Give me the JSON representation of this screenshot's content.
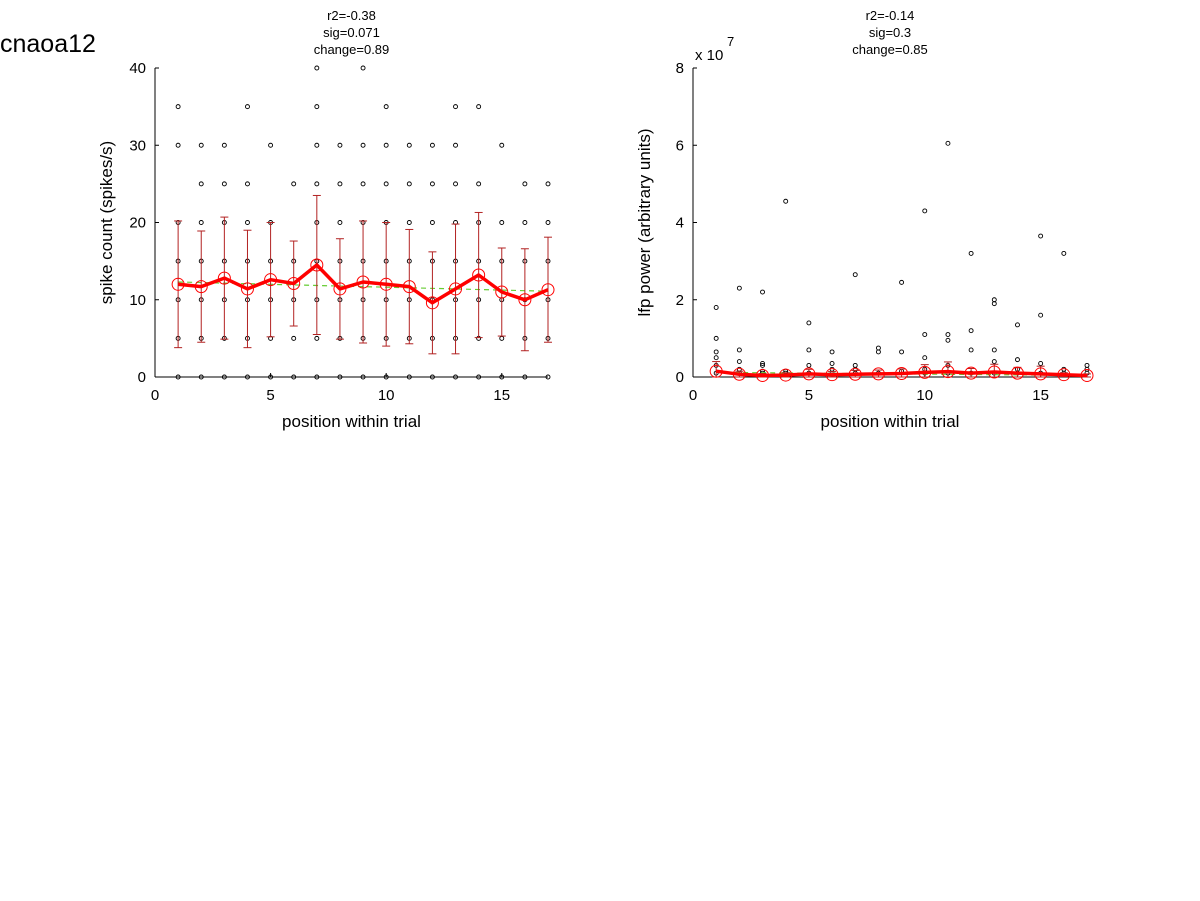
{
  "page_title": "cnaoa12",
  "colors": {
    "mean_line": "#ff0000",
    "errorbar": "#b22222",
    "fit_line": "#66cc33",
    "points": "#000000"
  },
  "chart_data": [
    {
      "type": "scatter",
      "stats": [
        "r2=-0.38",
        "sig=0.071",
        "change=0.89"
      ],
      "xlabel": "position within trial",
      "ylabel": "spike count (spikes/s)",
      "xlim": [
        0,
        17
      ],
      "ylim": [
        0,
        40
      ],
      "xticks": [
        0,
        5,
        10,
        15
      ],
      "yticks": [
        0,
        10,
        20,
        30,
        40
      ],
      "exponent_label": "",
      "grid": false,
      "points_x": [
        1,
        1,
        1,
        1,
        1,
        1,
        1,
        2,
        2,
        2,
        2,
        2,
        2,
        2,
        3,
        3,
        3,
        3,
        3,
        3,
        3,
        4,
        4,
        4,
        4,
        4,
        4,
        4,
        5,
        5,
        5,
        5,
        5,
        5,
        6,
        6,
        6,
        6,
        6,
        7,
        7,
        7,
        7,
        7,
        7,
        7,
        7,
        7,
        8,
        8,
        8,
        8,
        8,
        8,
        8,
        9,
        9,
        9,
        9,
        9,
        9,
        9,
        9,
        10,
        10,
        10,
        10,
        10,
        10,
        10,
        10,
        11,
        11,
        11,
        11,
        11,
        11,
        11,
        12,
        12,
        12,
        12,
        12,
        12,
        12,
        13,
        13,
        13,
        13,
        13,
        13,
        13,
        13,
        14,
        14,
        14,
        14,
        14,
        14,
        14,
        15,
        15,
        15,
        15,
        15,
        15,
        16,
        16,
        16,
        16,
        16,
        16,
        17,
        17,
        17,
        17,
        17,
        17
      ],
      "points_y": [
        0,
        5,
        10,
        15,
        20,
        30,
        35,
        0,
        5,
        10,
        15,
        20,
        25,
        30,
        0,
        5,
        10,
        15,
        20,
        25,
        30,
        0,
        5,
        10,
        15,
        20,
        25,
        35,
        0,
        5,
        10,
        15,
        20,
        30,
        0,
        5,
        10,
        15,
        25,
        0,
        5,
        10,
        15,
        20,
        25,
        30,
        35,
        40,
        0,
        5,
        10,
        15,
        20,
        25,
        30,
        0,
        5,
        10,
        15,
        20,
        25,
        30,
        40,
        0,
        5,
        10,
        15,
        20,
        25,
        30,
        35,
        0,
        5,
        10,
        15,
        20,
        25,
        30,
        0,
        5,
        10,
        15,
        20,
        25,
        30,
        0,
        5,
        10,
        15,
        20,
        25,
        30,
        35,
        0,
        5,
        10,
        15,
        20,
        25,
        35,
        0,
        5,
        10,
        15,
        20,
        30,
        0,
        5,
        10,
        15,
        20,
        25,
        0,
        5,
        10,
        15,
        20,
        25
      ],
      "mean_x": [
        1,
        2,
        3,
        4,
        5,
        6,
        7,
        8,
        9,
        10,
        11,
        12,
        13,
        14,
        15,
        16,
        17
      ],
      "mean_y": [
        12.0,
        11.7,
        12.8,
        11.4,
        12.6,
        12.1,
        14.5,
        11.4,
        12.3,
        12.0,
        11.7,
        9.6,
        11.4,
        13.2,
        11.0,
        10.0,
        11.3
      ],
      "err": [
        8.2,
        7.2,
        7.9,
        7.6,
        7.4,
        5.5,
        9.0,
        6.5,
        7.9,
        8.0,
        7.4,
        6.6,
        8.4,
        8.1,
        5.7,
        6.6,
        6.8
      ],
      "fit": [
        [
          1,
          12.3
        ],
        [
          17,
          11.1
        ]
      ]
    },
    {
      "type": "scatter",
      "stats": [
        "r2=-0.14",
        "sig=0.3",
        "change=0.85"
      ],
      "xlabel": "position within trial",
      "ylabel": "lfp power (arbitrary units)",
      "xlim": [
        0,
        17
      ],
      "ylim": [
        0,
        8
      ],
      "xticks": [
        0,
        5,
        10,
        15
      ],
      "yticks": [
        0,
        2,
        4,
        6,
        8
      ],
      "exponent_label": "x 10",
      "exponent_power": "7",
      "grid": false,
      "points_x": [
        1,
        1,
        1,
        1,
        1,
        1,
        2,
        2,
        2,
        2,
        2,
        3,
        3,
        3,
        3,
        3,
        4,
        4,
        4,
        5,
        5,
        5,
        5,
        6,
        6,
        6,
        6,
        7,
        7,
        7,
        7,
        8,
        8,
        8,
        9,
        9,
        9,
        10,
        10,
        10,
        10,
        10,
        11,
        11,
        11,
        11,
        11,
        12,
        12,
        12,
        12,
        13,
        13,
        13,
        13,
        13,
        14,
        14,
        14,
        14,
        15,
        15,
        15,
        15,
        16,
        16,
        16,
        17,
        17,
        17
      ],
      "points_y": [
        0.1,
        0.3,
        0.65,
        1.0,
        1.8,
        0.5,
        0.1,
        0.4,
        0.7,
        2.3,
        0.2,
        0.1,
        0.3,
        0.35,
        2.2,
        0.15,
        0.1,
        4.55,
        0.15,
        0.1,
        0.3,
        0.7,
        1.4,
        0.1,
        0.2,
        0.35,
        0.65,
        0.1,
        0.2,
        0.3,
        2.65,
        0.1,
        0.65,
        0.75,
        0.15,
        0.65,
        2.45,
        0.1,
        0.5,
        1.1,
        4.3,
        0.2,
        0.1,
        0.95,
        1.1,
        6.05,
        0.3,
        0.1,
        0.7,
        1.2,
        3.2,
        0.1,
        0.4,
        0.7,
        1.9,
        2.0,
        0.1,
        0.45,
        1.35,
        0.2,
        0.1,
        0.35,
        1.6,
        3.65,
        0.1,
        0.2,
        3.2,
        0.1,
        0.2,
        0.3
      ],
      "mean_x": [
        1,
        2,
        3,
        4,
        5,
        6,
        7,
        8,
        9,
        10,
        11,
        12,
        13,
        14,
        15,
        16,
        17
      ],
      "mean_y": [
        0.15,
        0.07,
        0.04,
        0.05,
        0.08,
        0.06,
        0.07,
        0.08,
        0.09,
        0.12,
        0.14,
        0.1,
        0.13,
        0.1,
        0.08,
        0.06,
        0.04
      ],
      "err": [
        0.25,
        0.08,
        0.05,
        0.06,
        0.12,
        0.08,
        0.1,
        0.1,
        0.12,
        0.2,
        0.25,
        0.12,
        0.2,
        0.15,
        0.2,
        0.05,
        0.04
      ],
      "fit": [
        [
          1,
          0.12
        ],
        [
          17,
          0.04
        ]
      ]
    }
  ]
}
